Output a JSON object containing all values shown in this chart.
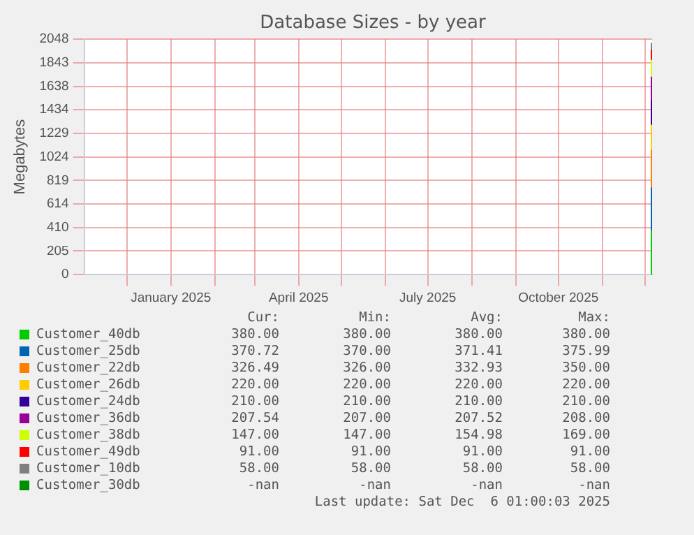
{
  "chart_data": {
    "type": "area",
    "title": "Database Sizes - by year",
    "ylabel": "Megabytes",
    "stacked": true,
    "grid": true,
    "legend": "bottom",
    "x": [
      "2025-12-05T01:00",
      "2025-12-06T01:00"
    ],
    "xlim": [
      "2024-11-01",
      "2025-12-06T01:00"
    ],
    "xticks": [
      {
        "value": "2024-12-01",
        "label": null
      },
      {
        "value": "2025-01-01",
        "label": "January 2025"
      },
      {
        "value": "2025-02-01",
        "label": null
      },
      {
        "value": "2025-03-01",
        "label": null
      },
      {
        "value": "2025-04-01",
        "label": "April 2025"
      },
      {
        "value": "2025-05-01",
        "label": null
      },
      {
        "value": "2025-06-01",
        "label": null
      },
      {
        "value": "2025-07-01",
        "label": "July 2025"
      },
      {
        "value": "2025-08-01",
        "label": null
      },
      {
        "value": "2025-09-01",
        "label": null
      },
      {
        "value": "2025-10-01",
        "label": "October 2025"
      },
      {
        "value": "2025-11-01",
        "label": null
      },
      {
        "value": "2025-12-01",
        "label": null
      }
    ],
    "ylim": [
      0,
      2048
    ],
    "yticks": [
      0,
      205,
      410,
      614,
      819,
      1024,
      1229,
      1434,
      1638,
      1843,
      2048
    ],
    "series": [
      {
        "name": "Customer_40db",
        "color": "#00cc00",
        "values": [
          380,
          380
        ]
      },
      {
        "name": "Customer_25db",
        "color": "#0066b3",
        "values": [
          370.72,
          370.72
        ]
      },
      {
        "name": "Customer_22db",
        "color": "#ff8000",
        "values": [
          326.49,
          326.49
        ]
      },
      {
        "name": "Customer_26db",
        "color": "#ffcc00",
        "values": [
          220,
          220
        ]
      },
      {
        "name": "Customer_24db",
        "color": "#330099",
        "values": [
          210,
          210
        ]
      },
      {
        "name": "Customer_36db",
        "color": "#990099",
        "values": [
          207.54,
          207.54
        ]
      },
      {
        "name": "Customer_38db",
        "color": "#ccff00",
        "values": [
          147,
          147
        ]
      },
      {
        "name": "Customer_49db",
        "color": "#ff0000",
        "values": [
          91,
          91
        ]
      },
      {
        "name": "Customer_10db",
        "color": "#808080",
        "values": [
          58,
          58
        ]
      },
      {
        "name": "Customer_30db",
        "color": "#008f00",
        "values": [
          null,
          null
        ]
      }
    ],
    "annotations": [
      "Cur:",
      "Min:",
      "Avg:",
      "Max:",
      "380.00",
      "380.00",
      "380.00",
      "380.00",
      "370.72",
      "370.00",
      "371.41",
      "375.99",
      "326.49",
      "326.00",
      "332.93",
      "350.00",
      "220.00",
      "220.00",
      "220.00",
      "220.00",
      "210.00",
      "210.00",
      "210.00",
      "210.00",
      "207.54",
      "207.00",
      "207.52",
      "208.00",
      "147.00",
      "147.00",
      "154.98",
      "169.00",
      "91.00",
      "91.00",
      "91.00",
      "91.00",
      "58.00",
      "58.00",
      "58.00",
      "58.00",
      "-nan",
      "-nan",
      "-nan",
      "-nan",
      "Last update: Sat Dec  6 01:00:03 2025"
    ]
  }
}
